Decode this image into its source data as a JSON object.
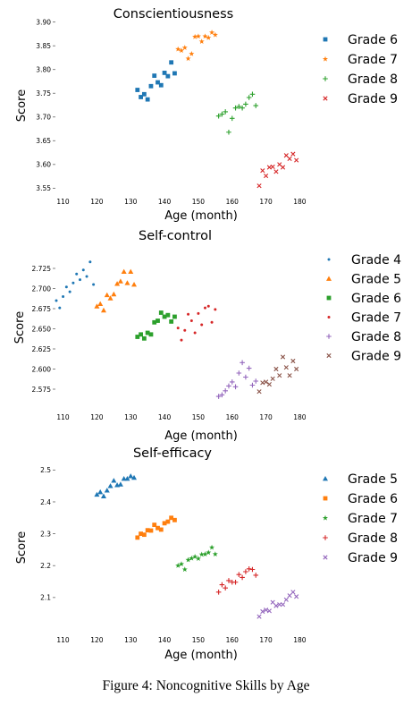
{
  "caption": "Figure 4: Noncognitive Skills by Age",
  "colors": {
    "Grade 4": "#1f77b4",
    "Grade 5": "#ff7f0e",
    "Grade 6": "#2ca02c",
    "Grade 7": "#d62728",
    "Grade 8": "#9467bd",
    "Grade 9": "#8c564b"
  },
  "chart_data": [
    {
      "type": "scatter",
      "title": "Conscientiousness",
      "xlabel": "Age (month)",
      "ylabel": "Score",
      "xlim": [
        108,
        182
      ],
      "ylim": [
        3.545,
        3.905
      ],
      "xticks": [
        110,
        120,
        130,
        140,
        150,
        160,
        170,
        180
      ],
      "yticks": [
        3.55,
        3.6,
        3.65,
        3.7,
        3.75,
        3.8,
        3.85,
        3.9
      ],
      "ytick_labels": [
        "3.55",
        "3.60",
        "3.65",
        "3.70",
        "3.75",
        "3.80",
        "3.85",
        "3.90"
      ],
      "grid": false,
      "legend_position": "right",
      "series": [
        {
          "name": "Grade 6",
          "color": "#1f77b4",
          "marker": "square",
          "x": [
            132,
            133,
            134,
            135,
            136,
            137,
            138,
            139,
            140,
            141,
            142,
            143
          ],
          "y": [
            3.757,
            3.742,
            3.748,
            3.737,
            3.765,
            3.787,
            3.773,
            3.767,
            3.793,
            3.786,
            3.815,
            3.792
          ]
        },
        {
          "name": "Grade 7",
          "color": "#ff7f0e",
          "marker": "star",
          "x": [
            144,
            145,
            146,
            147,
            148,
            149,
            150,
            151,
            152,
            153,
            154,
            155
          ],
          "y": [
            3.843,
            3.84,
            3.846,
            3.823,
            3.833,
            3.869,
            3.87,
            3.859,
            3.87,
            3.867,
            3.878,
            3.873
          ]
        },
        {
          "name": "Grade 8",
          "color": "#2ca02c",
          "marker": "plus",
          "x": [
            156,
            157,
            158,
            159,
            160,
            161,
            162,
            163,
            164,
            165,
            166,
            167
          ],
          "y": [
            3.702,
            3.706,
            3.711,
            3.668,
            3.697,
            3.719,
            3.722,
            3.719,
            3.727,
            3.741,
            3.748,
            3.724
          ]
        },
        {
          "name": "Grade 9",
          "color": "#d62728",
          "marker": "x",
          "x": [
            168,
            169,
            170,
            171,
            172,
            173,
            174,
            175,
            176,
            177,
            178,
            179
          ],
          "y": [
            3.555,
            3.587,
            3.576,
            3.594,
            3.595,
            3.585,
            3.6,
            3.594,
            3.619,
            3.612,
            3.622,
            3.609
          ]
        }
      ]
    },
    {
      "type": "scatter",
      "title": "Self-control",
      "xlabel": "Age (month)",
      "ylabel": "Score",
      "xlim": [
        108,
        182
      ],
      "ylim": [
        2.555,
        2.745
      ],
      "xticks": [
        110,
        120,
        130,
        140,
        150,
        160,
        170,
        180
      ],
      "yticks": [
        2.575,
        2.6,
        2.625,
        2.65,
        2.675,
        2.7,
        2.725
      ],
      "ytick_labels": [
        "2.575",
        "2.600",
        "2.625",
        "2.650",
        "2.675",
        "2.700",
        "2.725"
      ],
      "grid": false,
      "legend_position": "right",
      "series": [
        {
          "name": "Grade 4",
          "color": "#1f77b4",
          "marker": "dot",
          "x": [
            108,
            109,
            110,
            111,
            112,
            113,
            114,
            115,
            116,
            117,
            118,
            119
          ],
          "y": [
            2.685,
            2.676,
            2.69,
            2.702,
            2.696,
            2.707,
            2.718,
            2.711,
            2.723,
            2.715,
            2.733,
            2.705
          ]
        },
        {
          "name": "Grade 5",
          "color": "#ff7f0e",
          "marker": "triangle",
          "x": [
            120,
            121,
            122,
            123,
            124,
            125,
            126,
            127,
            128,
            129,
            130,
            131
          ],
          "y": [
            2.678,
            2.681,
            2.673,
            2.692,
            2.688,
            2.693,
            2.706,
            2.709,
            2.721,
            2.707,
            2.721,
            2.705
          ]
        },
        {
          "name": "Grade 6",
          "color": "#2ca02c",
          "marker": "square",
          "x": [
            132,
            133,
            134,
            135,
            136,
            137,
            138,
            139,
            140,
            141,
            142,
            143
          ],
          "y": [
            2.64,
            2.643,
            2.638,
            2.645,
            2.643,
            2.658,
            2.66,
            2.67,
            2.665,
            2.667,
            2.659,
            2.665
          ]
        },
        {
          "name": "Grade 7",
          "color": "#d62728",
          "marker": "dot",
          "x": [
            144,
            145,
            146,
            147,
            148,
            149,
            150,
            151,
            152,
            153,
            154,
            155
          ],
          "y": [
            2.651,
            2.636,
            2.648,
            2.668,
            2.66,
            2.645,
            2.669,
            2.655,
            2.676,
            2.678,
            2.658,
            2.674
          ]
        },
        {
          "name": "Grade 8",
          "color": "#9467bd",
          "marker": "plus",
          "x": [
            156,
            157,
            158,
            159,
            160,
            161,
            162,
            163,
            164,
            165,
            166,
            167
          ],
          "y": [
            2.566,
            2.568,
            2.573,
            2.579,
            2.584,
            2.578,
            2.595,
            2.608,
            2.59,
            2.601,
            2.58,
            2.585
          ]
        },
        {
          "name": "Grade 9",
          "color": "#8c564b",
          "marker": "x",
          "x": [
            168,
            169,
            170,
            171,
            172,
            173,
            174,
            175,
            176,
            177,
            178,
            179
          ],
          "y": [
            2.572,
            2.583,
            2.584,
            2.581,
            2.588,
            2.6,
            2.592,
            2.615,
            2.602,
            2.592,
            2.61,
            2.6
          ]
        }
      ]
    },
    {
      "type": "scatter",
      "title": "Self-efficacy",
      "xlabel": "Age (month)",
      "ylabel": "Score",
      "xlim": [
        108,
        182
      ],
      "ylim": [
        2.035,
        2.515
      ],
      "xticks": [
        110,
        120,
        130,
        140,
        150,
        160,
        170,
        180
      ],
      "yticks": [
        2.1,
        2.2,
        2.3,
        2.4,
        2.5
      ],
      "ytick_labels": [
        "2.1",
        "2.2",
        "2.3",
        "2.4",
        "2.5"
      ],
      "grid": false,
      "legend_position": "right",
      "series": [
        {
          "name": "Grade 5",
          "color": "#1f77b4",
          "marker": "triangle",
          "x": [
            120,
            121,
            122,
            123,
            124,
            125,
            126,
            127,
            128,
            129,
            130,
            131
          ],
          "y": [
            2.423,
            2.431,
            2.418,
            2.436,
            2.45,
            2.467,
            2.453,
            2.455,
            2.473,
            2.473,
            2.481,
            2.476
          ]
        },
        {
          "name": "Grade 6",
          "color": "#ff7f0e",
          "marker": "square",
          "x": [
            132,
            133,
            134,
            135,
            136,
            137,
            138,
            139,
            140,
            141,
            142,
            143
          ],
          "y": [
            2.288,
            2.3,
            2.297,
            2.311,
            2.31,
            2.328,
            2.318,
            2.313,
            2.333,
            2.338,
            2.35,
            2.343
          ]
        },
        {
          "name": "Grade 7",
          "color": "#2ca02c",
          "marker": "star",
          "x": [
            144,
            145,
            146,
            147,
            148,
            149,
            150,
            151,
            152,
            153,
            154,
            155
          ],
          "y": [
            2.2,
            2.205,
            2.188,
            2.218,
            2.223,
            2.228,
            2.222,
            2.235,
            2.236,
            2.241,
            2.257,
            2.236
          ]
        },
        {
          "name": "Grade 8",
          "color": "#d62728",
          "marker": "plus",
          "x": [
            156,
            157,
            158,
            159,
            160,
            161,
            162,
            163,
            164,
            165,
            166,
            167
          ],
          "y": [
            2.117,
            2.14,
            2.13,
            2.153,
            2.148,
            2.148,
            2.172,
            2.163,
            2.181,
            2.19,
            2.188,
            2.17
          ]
        },
        {
          "name": "Grade 9",
          "color": "#9467bd",
          "marker": "x",
          "x": [
            168,
            169,
            170,
            171,
            172,
            173,
            174,
            175,
            176,
            177,
            178,
            179
          ],
          "y": [
            2.04,
            2.056,
            2.061,
            2.058,
            2.085,
            2.074,
            2.078,
            2.078,
            2.093,
            2.106,
            2.117,
            2.103
          ]
        }
      ]
    }
  ]
}
